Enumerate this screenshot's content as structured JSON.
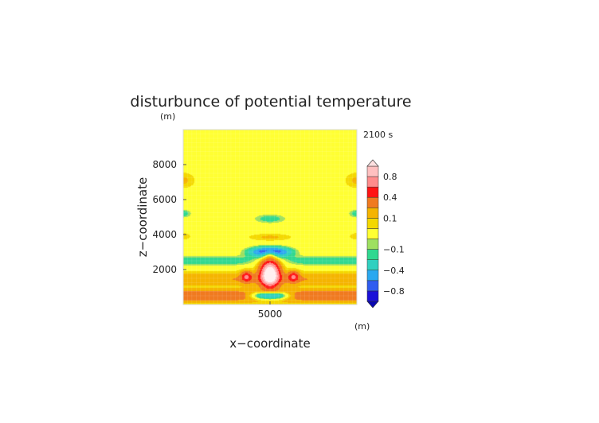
{
  "chart_data": {
    "type": "heatmap",
    "title": "disturbunce of potential temperature",
    "xlabel": "x−coordinate",
    "ylabel": "z−coordinate",
    "x_unit": "(m)",
    "y_unit": "(m)",
    "time_label": "2100 s",
    "xlim": [
      0,
      10000
    ],
    "ylim": [
      0,
      10000
    ],
    "x_ticks": [
      5000
    ],
    "y_ticks": [
      2000,
      4000,
      6000,
      8000
    ],
    "colorbar": {
      "levels": [
        -1.0,
        -0.8,
        -0.6,
        -0.4,
        -0.2,
        -0.1,
        -0.05,
        0.05,
        0.1,
        0.2,
        0.4,
        0.6,
        0.8,
        1.0
      ],
      "colors": [
        "#1a10d8",
        "#2f5cf0",
        "#2aa8f0",
        "#30d0c0",
        "#30d890",
        "#9ee060",
        "#ffff33",
        "#f4d800",
        "#f5b400",
        "#f07a20",
        "#ff1414",
        "#ff8c8c",
        "#ffc0c0"
      ],
      "tick_labels": [
        "0.8",
        "0.4",
        "0.1",
        "−0.1",
        "−0.4",
        "−0.8"
      ],
      "tick_values": [
        0.8,
        0.4,
        0.1,
        -0.1,
        -0.4,
        -0.8
      ]
    },
    "features": [
      {
        "x": 5000,
        "z": 1700,
        "value": 1.0
      },
      {
        "x": 5000,
        "z": 3000,
        "value": -0.9
      },
      {
        "x": 5000,
        "z": 600,
        "value": -0.4
      },
      {
        "x": 3700,
        "z": 1600,
        "value": 0.6
      },
      {
        "x": 6300,
        "z": 1600,
        "value": 0.6
      },
      {
        "x": 5000,
        "z": 4900,
        "value": -0.15
      },
      {
        "x": 5000,
        "z": 800,
        "value": 0.3
      },
      {
        "x": 0,
        "z": 7000,
        "value": 0.1
      },
      {
        "x": 10000,
        "z": 7000,
        "value": 0.1
      },
      {
        "x": 0,
        "z": 5200,
        "value": -0.15
      },
      {
        "x": 10000,
        "z": 5200,
        "value": -0.15
      },
      {
        "x": 0,
        "z": 2300,
        "value": -0.15
      },
      {
        "x": 10000,
        "z": 2300,
        "value": -0.15
      },
      {
        "x": 5000,
        "z": 3900,
        "value": 0.1
      }
    ]
  }
}
